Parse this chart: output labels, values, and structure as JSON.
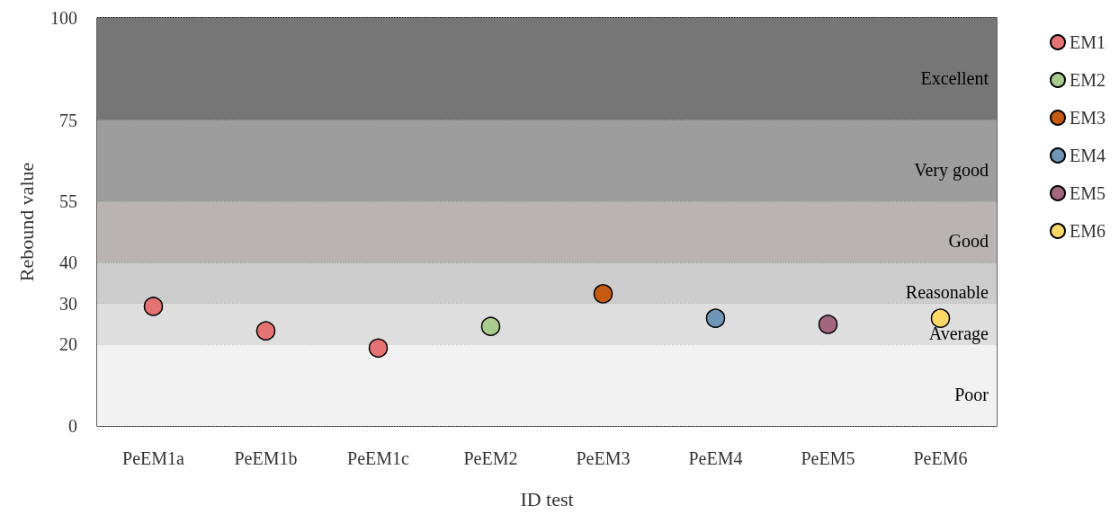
{
  "chart_data": {
    "type": "scatter",
    "xlabel": "ID test",
    "ylabel": "Rebound value",
    "categories": [
      "PeEM1a",
      "PeEM1b",
      "PeEM1c",
      "PeEM2",
      "PeEM3",
      "PeEM4",
      "PeEM5",
      "PeEM6"
    ],
    "series": [
      {
        "name": "EM1",
        "color": "#e57373",
        "values": [
          29.3,
          23.3,
          19.1,
          null,
          null,
          null,
          null,
          null
        ]
      },
      {
        "name": "EM2",
        "color": "#a9cb8e",
        "values": [
          null,
          null,
          null,
          24.4,
          null,
          null,
          null,
          null
        ]
      },
      {
        "name": "EM3",
        "color": "#c55a11",
        "values": [
          null,
          null,
          null,
          null,
          32.4,
          null,
          null,
          null
        ]
      },
      {
        "name": "EM4",
        "color": "#6f95b9",
        "values": [
          null,
          null,
          null,
          null,
          null,
          26.4,
          null,
          null
        ]
      },
      {
        "name": "EM5",
        "color": "#a2667f",
        "values": [
          null,
          null,
          null,
          null,
          null,
          null,
          24.9,
          null
        ]
      },
      {
        "name": "EM6",
        "color": "#ffd966",
        "values": [
          null,
          null,
          null,
          null,
          null,
          null,
          null,
          26.4
        ]
      }
    ],
    "bands": [
      {
        "axis": "y",
        "from": 0,
        "to": 20,
        "label": "Poor",
        "color": "#f2f2f2"
      },
      {
        "axis": "y",
        "from": 20,
        "to": 30,
        "label": "Average",
        "color": "#dedede"
      },
      {
        "axis": "y",
        "from": 30,
        "to": 40,
        "label": "Reasonable",
        "color": "#cccccc"
      },
      {
        "axis": "y",
        "from": 40,
        "to": 55,
        "label": "Good",
        "color": "#bab3b3"
      },
      {
        "axis": "y",
        "from": 55,
        "to": 75,
        "label": "Very good",
        "color": "#9d9d9d"
      },
      {
        "axis": "y",
        "from": 75,
        "to": 100,
        "label": "Excellent",
        "color": "#767676"
      }
    ],
    "ylim": [
      0,
      100
    ],
    "yticks": [
      0,
      20,
      30,
      40,
      55,
      75,
      100
    ],
    "grid": "y",
    "legend": "right",
    "marker": "circle"
  }
}
